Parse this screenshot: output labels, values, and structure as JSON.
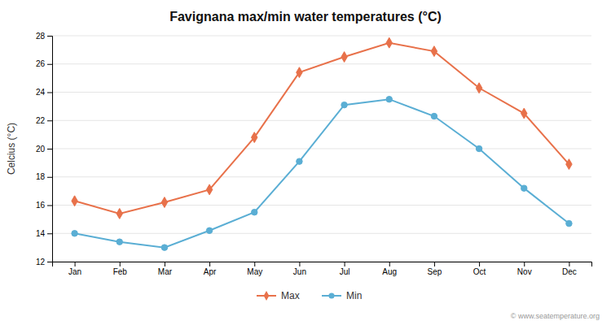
{
  "chart_data": {
    "type": "line",
    "title": "Favignana max/min water temperatures (°C)",
    "ylabel": "Celcius (°C)",
    "categories": [
      "Jan",
      "Feb",
      "Mar",
      "Apr",
      "May",
      "Jun",
      "Jul",
      "Aug",
      "Sep",
      "Oct",
      "Nov",
      "Dec"
    ],
    "series": [
      {
        "name": "Max",
        "color": "#e8714a",
        "marker": "diamond",
        "values": [
          16.3,
          15.4,
          16.2,
          17.1,
          20.8,
          25.4,
          26.5,
          27.5,
          26.9,
          24.3,
          22.5,
          18.9
        ]
      },
      {
        "name": "Min",
        "color": "#5aaed4",
        "marker": "circle",
        "values": [
          14.0,
          13.4,
          13.0,
          14.2,
          15.5,
          19.1,
          23.1,
          23.5,
          22.3,
          20.0,
          17.2,
          14.7
        ]
      }
    ],
    "ylim": [
      12,
      28
    ],
    "yticks": [
      12,
      14,
      16,
      18,
      20,
      22,
      24,
      26,
      28
    ],
    "grid": true,
    "legend": "bottom",
    "annotations": [
      "© www.seatemperature.org"
    ]
  }
}
